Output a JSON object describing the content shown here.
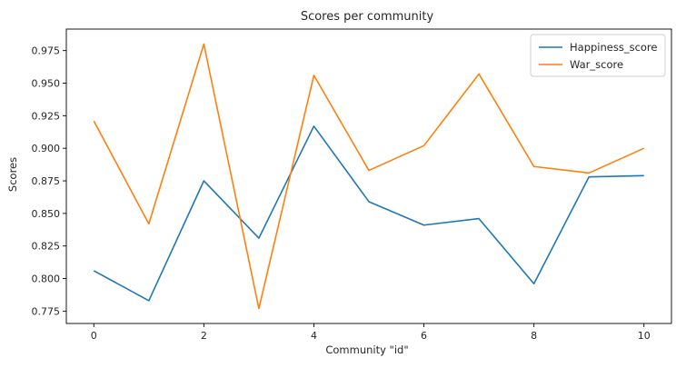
{
  "chart_data": {
    "type": "line",
    "title": "Scores per community",
    "xlabel": "Community \"id\"",
    "ylabel": "Scores",
    "x": [
      0,
      1,
      2,
      3,
      4,
      5,
      6,
      7,
      8,
      9,
      10
    ],
    "xlim": [
      -0.5,
      10.5
    ],
    "ylim": [
      0.7655,
      0.9915
    ],
    "xticks": [
      0,
      2,
      4,
      6,
      8,
      10
    ],
    "yticks": [
      0.775,
      0.8,
      0.825,
      0.85,
      0.875,
      0.9,
      0.925,
      0.95,
      0.975
    ],
    "ytick_labels": [
      "0.775",
      "0.800",
      "0.825",
      "0.850",
      "0.875",
      "0.900",
      "0.925",
      "0.950",
      "0.975"
    ],
    "xtick_labels": [
      "0",
      "2",
      "4",
      "6",
      "8",
      "10"
    ],
    "grid": false,
    "legend_position": "top-right",
    "series": [
      {
        "name": "Happiness_score",
        "color": "#1f77b4",
        "values": [
          0.806,
          0.783,
          0.875,
          0.831,
          0.917,
          0.859,
          0.841,
          0.846,
          0.796,
          0.878,
          0.879
        ]
      },
      {
        "name": "War_score",
        "color": "#ff7f0e",
        "values": [
          0.921,
          0.842,
          0.98,
          0.777,
          0.956,
          0.883,
          0.902,
          0.957,
          0.886,
          0.881,
          0.9
        ]
      }
    ]
  }
}
